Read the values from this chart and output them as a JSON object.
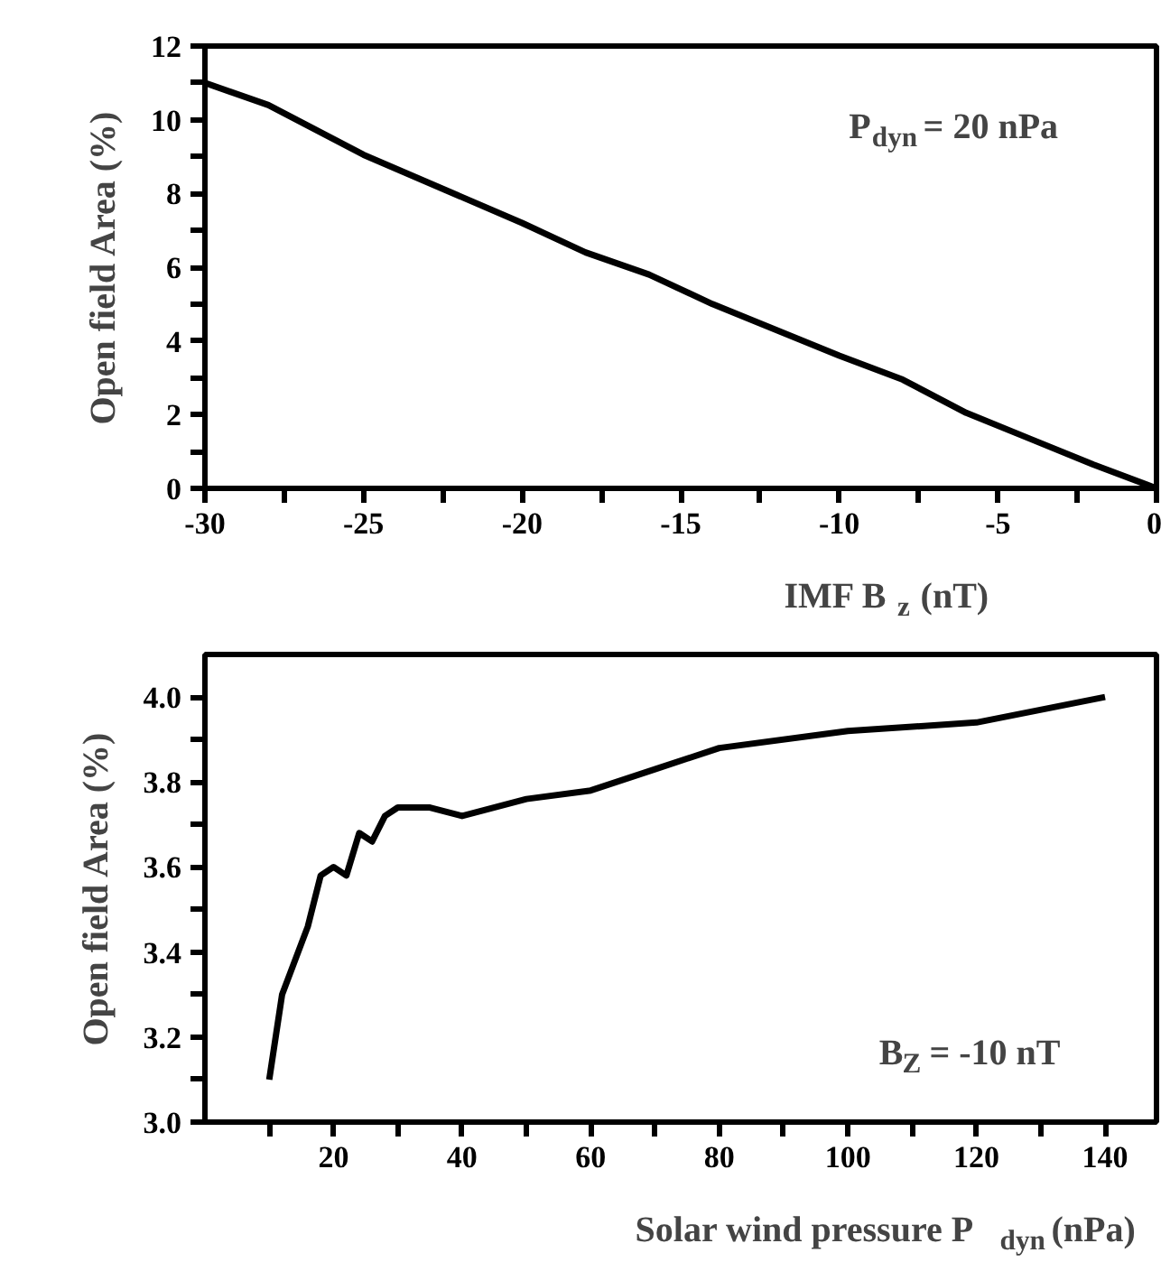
{
  "chart_data": [
    {
      "type": "line",
      "xlabel": "IMF B$_{z}$ (nT)",
      "ylabel": "Open field Area (%)",
      "annotations": [
        "P$_{dyn}$ = 20 nPa"
      ],
      "x": [
        -30,
        -28,
        -25,
        -20,
        -18,
        -16,
        -14,
        -10,
        -8,
        -6,
        -4,
        -2,
        0
      ],
      "series": [
        {
          "color": "#000000",
          "values": [
            11.0,
            10.4,
            9.05,
            7.2,
            6.4,
            5.8,
            5.0,
            3.6,
            2.95,
            2.05,
            1.35,
            0.65,
            0.0
          ]
        }
      ],
      "xlim": [
        -30,
        0
      ],
      "ylim": [
        0,
        12
      ],
      "xticks": [
        -30,
        {
          "value": -27.5,
          "label": null
        },
        -25,
        {
          "value": -22.5,
          "label": null
        },
        -20,
        {
          "value": -17.5,
          "label": null
        },
        -15,
        {
          "value": -12.5,
          "label": null
        },
        -10,
        {
          "value": -7.5,
          "label": null
        },
        -5,
        {
          "value": -2.5,
          "label": null
        },
        0
      ],
      "yticks": [
        0,
        {
          "value": 1,
          "label": null
        },
        2,
        {
          "value": 3,
          "label": null
        },
        4,
        {
          "value": 5,
          "label": null
        },
        6,
        {
          "value": 7,
          "label": null
        },
        8,
        {
          "value": 9,
          "label": null
        },
        10,
        {
          "value": 11,
          "label": null
        },
        12
      ]
    },
    {
      "type": "line",
      "xlabel": "Solar wind pressure P$_{dyn}$ (nPa)",
      "ylabel": "Open field Area (%)",
      "annotations": [
        "B$_{Z}$ = -10 nT"
      ],
      "x": [
        10,
        12,
        16,
        18,
        20,
        22,
        24,
        26,
        28,
        30,
        35,
        40,
        50,
        60,
        70,
        80,
        100,
        120,
        140
      ],
      "series": [
        {
          "color": "#000000",
          "values": [
            3.1,
            3.3,
            3.46,
            3.58,
            3.6,
            3.58,
            3.68,
            3.66,
            3.72,
            3.74,
            3.74,
            3.72,
            3.76,
            3.78,
            3.83,
            3.88,
            3.92,
            3.94,
            4.0
          ]
        }
      ],
      "xlim": [
        0,
        148
      ],
      "ylim": [
        3.0,
        4.1
      ],
      "xticks": [
        {
          "value": 10,
          "label": null
        },
        20,
        {
          "value": 30,
          "label": null
        },
        40,
        {
          "value": 50,
          "label": null
        },
        60,
        {
          "value": 70,
          "label": null
        },
        80,
        {
          "value": 90,
          "label": null
        },
        100,
        {
          "value": 110,
          "label": null
        },
        120,
        {
          "value": 130,
          "label": null
        },
        140
      ],
      "yticks": [
        {
          "value": 3.0,
          "label": "3.0"
        },
        {
          "value": 3.1,
          "label": null
        },
        {
          "value": 3.2,
          "label": "3.2"
        },
        {
          "value": 3.3,
          "label": null
        },
        {
          "value": 3.4,
          "label": "3.4"
        },
        {
          "value": 3.5,
          "label": null
        },
        {
          "value": 3.6,
          "label": "3.6"
        },
        {
          "value": 3.7,
          "label": null
        },
        {
          "value": 3.8,
          "label": "3.8"
        },
        {
          "value": 3.9,
          "label": null
        },
        {
          "value": 4.0,
          "label": "4.0"
        }
      ]
    }
  ]
}
